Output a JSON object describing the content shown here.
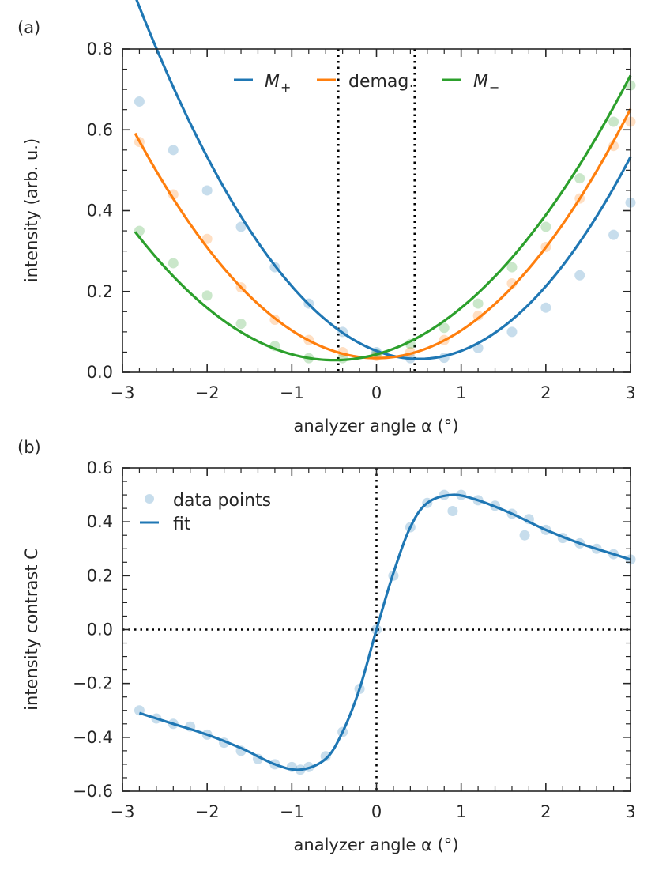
{
  "colors": {
    "m_plus": "#1f77b4",
    "demag": "#ff7f0e",
    "m_minus": "#2ca02c",
    "text": "#262626",
    "reference_line": "#000000"
  },
  "chart_data": [
    {
      "panel_label": "(a)",
      "type": "line",
      "xlabel": "analyzer angle α (°)",
      "ylabel": "intensity (arb. u.)",
      "xlim": [
        -3,
        3
      ],
      "ylim": [
        0,
        0.8
      ],
      "xticks": [
        -3,
        -2,
        -1,
        0,
        1,
        2,
        3
      ],
      "xtick_labels": [
        "−3",
        "−2",
        "−1",
        "0",
        "1",
        "2",
        "3"
      ],
      "yticks": [
        0,
        0.2,
        0.4,
        0.6,
        0.8
      ],
      "ytick_labels": [
        "0.0",
        "0.2",
        "0.4",
        "0.6",
        "0.8"
      ],
      "vertical_reference_lines": [
        -0.45,
        0.45
      ],
      "legend_position": "top-center",
      "series": [
        {
          "name": "M+",
          "legend_main": "M",
          "legend_sub": "+",
          "color_key": "m_plus",
          "fit": {
            "model": "quadratic",
            "a": 0.08,
            "x0": 0.5,
            "c": 0.033
          },
          "x": [
            -2.8,
            -2.4,
            -2.0,
            -1.6,
            -1.2,
            -0.8,
            -0.4,
            0.0,
            0.4,
            0.8,
            1.2,
            1.6,
            2.0,
            2.4,
            2.8,
            3.0
          ],
          "y": [
            0.67,
            0.55,
            0.45,
            0.36,
            0.26,
            0.17,
            0.1,
            0.05,
            0.035,
            0.036,
            0.06,
            0.1,
            0.16,
            0.24,
            0.34,
            0.42
          ]
        },
        {
          "name": "demag.",
          "legend_main": "demag.",
          "legend_sub": "",
          "color_key": "demag",
          "fit": {
            "model": "quadratic",
            "a": 0.0685,
            "x0": 0.0,
            "c": 0.035
          },
          "x": [
            -2.8,
            -2.4,
            -2.0,
            -1.6,
            -1.2,
            -0.8,
            -0.4,
            0.0,
            0.4,
            0.8,
            1.2,
            1.6,
            2.0,
            2.4,
            2.8,
            3.0
          ],
          "y": [
            0.57,
            0.44,
            0.33,
            0.21,
            0.13,
            0.08,
            0.05,
            0.04,
            0.05,
            0.08,
            0.14,
            0.22,
            0.31,
            0.43,
            0.56,
            0.62
          ]
        },
        {
          "name": "M−",
          "legend_main": "M",
          "legend_sub": "−",
          "color_key": "m_minus",
          "fit": {
            "model": "quadratic",
            "a": 0.0575,
            "x0": -0.5,
            "c": 0.03
          },
          "x": [
            -2.8,
            -2.4,
            -2.0,
            -1.6,
            -1.2,
            -0.8,
            -0.4,
            0.0,
            0.4,
            0.8,
            1.2,
            1.6,
            2.0,
            2.4,
            2.8,
            3.0
          ],
          "y": [
            0.35,
            0.27,
            0.19,
            0.12,
            0.065,
            0.035,
            0.035,
            0.045,
            0.07,
            0.11,
            0.17,
            0.26,
            0.36,
            0.48,
            0.62,
            0.71
          ]
        }
      ]
    },
    {
      "panel_label": "(b)",
      "type": "line",
      "xlabel": "analyzer angle α (°)",
      "ylabel": "intensity contrast C",
      "xlim": [
        -3,
        3
      ],
      "ylim": [
        -0.6,
        0.6
      ],
      "xticks": [
        -3,
        -2,
        -1,
        0,
        1,
        2,
        3
      ],
      "xtick_labels": [
        "−3",
        "−2",
        "−1",
        "0",
        "1",
        "2",
        "3"
      ],
      "yticks": [
        -0.6,
        -0.4,
        -0.2,
        0.0,
        0.2,
        0.4,
        0.6
      ],
      "ytick_labels": [
        "−0.6",
        "−0.4",
        "−0.2",
        "0.0",
        "0.2",
        "0.4",
        "0.6"
      ],
      "vertical_reference_lines": [
        0
      ],
      "horizontal_reference_lines": [
        0
      ],
      "legend_position": "top-left",
      "legend": [
        "data points",
        "fit"
      ],
      "series": [
        {
          "name": "fit",
          "color_key": "m_plus",
          "x": [
            -2.8,
            -2.4,
            -2.0,
            -1.6,
            -1.2,
            -0.9,
            -0.6,
            -0.4,
            -0.2,
            0.0,
            0.2,
            0.4,
            0.6,
            0.9,
            1.2,
            1.6,
            2.0,
            2.4,
            2.8,
            3.0
          ],
          "y": [
            -0.31,
            -0.35,
            -0.39,
            -0.44,
            -0.5,
            -0.52,
            -0.48,
            -0.38,
            -0.22,
            0.0,
            0.21,
            0.38,
            0.47,
            0.5,
            0.48,
            0.43,
            0.37,
            0.32,
            0.28,
            0.26
          ]
        },
        {
          "name": "data points",
          "color_key": "m_plus",
          "x": [
            -2.8,
            -2.6,
            -2.4,
            -2.2,
            -2.0,
            -1.8,
            -1.6,
            -1.4,
            -1.2,
            -1.0,
            -0.9,
            -0.8,
            -0.6,
            -0.4,
            -0.2,
            0.0,
            0.2,
            0.4,
            0.6,
            0.8,
            0.9,
            1.0,
            1.2,
            1.4,
            1.6,
            1.75,
            1.8,
            2.0,
            2.2,
            2.4,
            2.6,
            2.8,
            3.0
          ],
          "y": [
            -0.3,
            -0.33,
            -0.35,
            -0.36,
            -0.39,
            -0.42,
            -0.45,
            -0.48,
            -0.5,
            -0.51,
            -0.52,
            -0.51,
            -0.47,
            -0.38,
            -0.22,
            0.0,
            0.2,
            0.38,
            0.47,
            0.5,
            0.44,
            0.5,
            0.48,
            0.46,
            0.43,
            0.35,
            0.41,
            0.37,
            0.34,
            0.32,
            0.3,
            0.28,
            0.26
          ]
        }
      ]
    }
  ]
}
